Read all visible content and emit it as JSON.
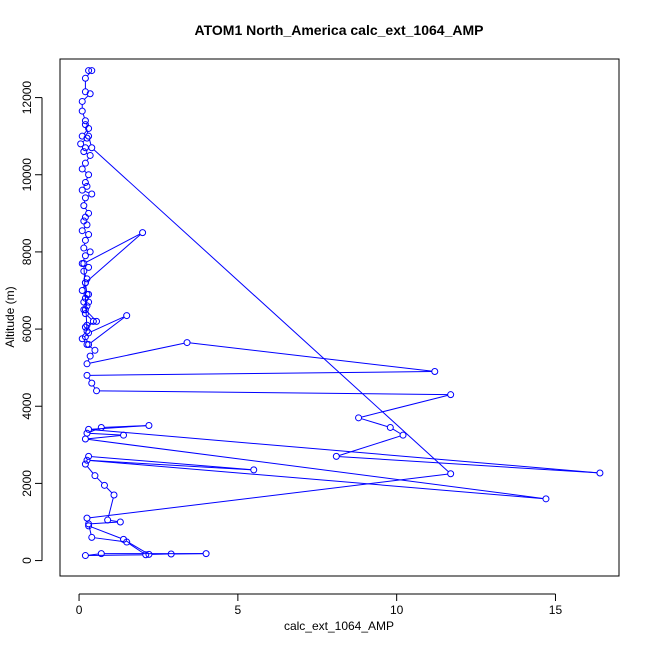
{
  "chart_data": {
    "type": "line",
    "title": "ATOM1 North_America calc_ext_1064_AMP",
    "xlabel": "calc_ext_1064_AMP",
    "ylabel": "Altitude (m)",
    "xlim": [
      -0.6,
      17.0
    ],
    "ylim": [
      -400,
      13000
    ],
    "x_ticks": [
      0,
      5,
      10,
      15
    ],
    "x_tick_labels": [
      "0",
      "5",
      "10",
      "15"
    ],
    "y_ticks": [
      0,
      2000,
      4000,
      6000,
      8000,
      10000,
      12000
    ],
    "y_tick_labels": [
      "0",
      "2000",
      "4000",
      "6000",
      "8000",
      "10000",
      "12000"
    ],
    "grid": false,
    "line_color": "#0000ff",
    "series": [
      {
        "style": "line+circles",
        "x": [
          0.3,
          0.4,
          0.2,
          0.2,
          0.35,
          0.1,
          0.1,
          0.2,
          0.3,
          0.1,
          0.25,
          0.05,
          0.2,
          0.15,
          0.35,
          0.2,
          0.1,
          0.3,
          0.2,
          0.25,
          0.1,
          0.4,
          0.2,
          0.15,
          0.3,
          0.2,
          0.15,
          0.25,
          0.1,
          0.3,
          0.2,
          0.15,
          0.35,
          0.2,
          0.1,
          0.3,
          0.15,
          0.25,
          0.2,
          0.1,
          0.3,
          0.2,
          0.15,
          0.25,
          0.2,
          0.55,
          0.2,
          0.25,
          0.15,
          2.0,
          0.2,
          0.25,
          0.3,
          0.15,
          0.2,
          0.45,
          0.25,
          0.2,
          0.3,
          1.5,
          0.3,
          0.1,
          0.25,
          0.5,
          0.35,
          0.25,
          3.4,
          11.2,
          0.25,
          0.4,
          0.55,
          11.7,
          8.8,
          9.8,
          10.2,
          8.1,
          16.4,
          0.3,
          2.2,
          0.7,
          0.25,
          1.4,
          0.2,
          14.7,
          0.25,
          5.5,
          0.3,
          0.2,
          0.5,
          0.8,
          1.1,
          0.9,
          1.3,
          0.3,
          0.4,
          1.5,
          2.1,
          0.2,
          0.7,
          4.0,
          2.9,
          2.2,
          1.4,
          0.3,
          0.25,
          11.7,
          0.4,
          0.3,
          0.2
        ],
        "y": [
          12700,
          12700,
          12500,
          12150,
          12100,
          11900,
          11650,
          11400,
          11200,
          11000,
          10950,
          10800,
          10700,
          10600,
          10500,
          10300,
          10150,
          10000,
          9800,
          9700,
          9600,
          9500,
          9400,
          9200,
          9000,
          8900,
          8800,
          8700,
          8550,
          8450,
          8300,
          8100,
          8000,
          7900,
          7700,
          7600,
          7500,
          7300,
          7200,
          7000,
          6900,
          6800,
          6700,
          6600,
          6500,
          6200,
          6050,
          5950,
          7700,
          8500,
          7200,
          6900,
          6700,
          6500,
          6400,
          6200,
          6100,
          5800,
          5600,
          6350,
          5900,
          5750,
          5600,
          5450,
          5300,
          5100,
          5650,
          4900,
          4800,
          4600,
          4400,
          4300,
          3700,
          3450,
          3250,
          2700,
          2270,
          3400,
          3500,
          3450,
          3300,
          3250,
          3150,
          1600,
          2600,
          2350,
          2700,
          2500,
          2200,
          1950,
          1700,
          1050,
          1000,
          950,
          600,
          480,
          150,
          130,
          180,
          180,
          170,
          160,
          550,
          900,
          1100,
          2250,
          10700,
          11000,
          11300
        ]
      }
    ]
  }
}
